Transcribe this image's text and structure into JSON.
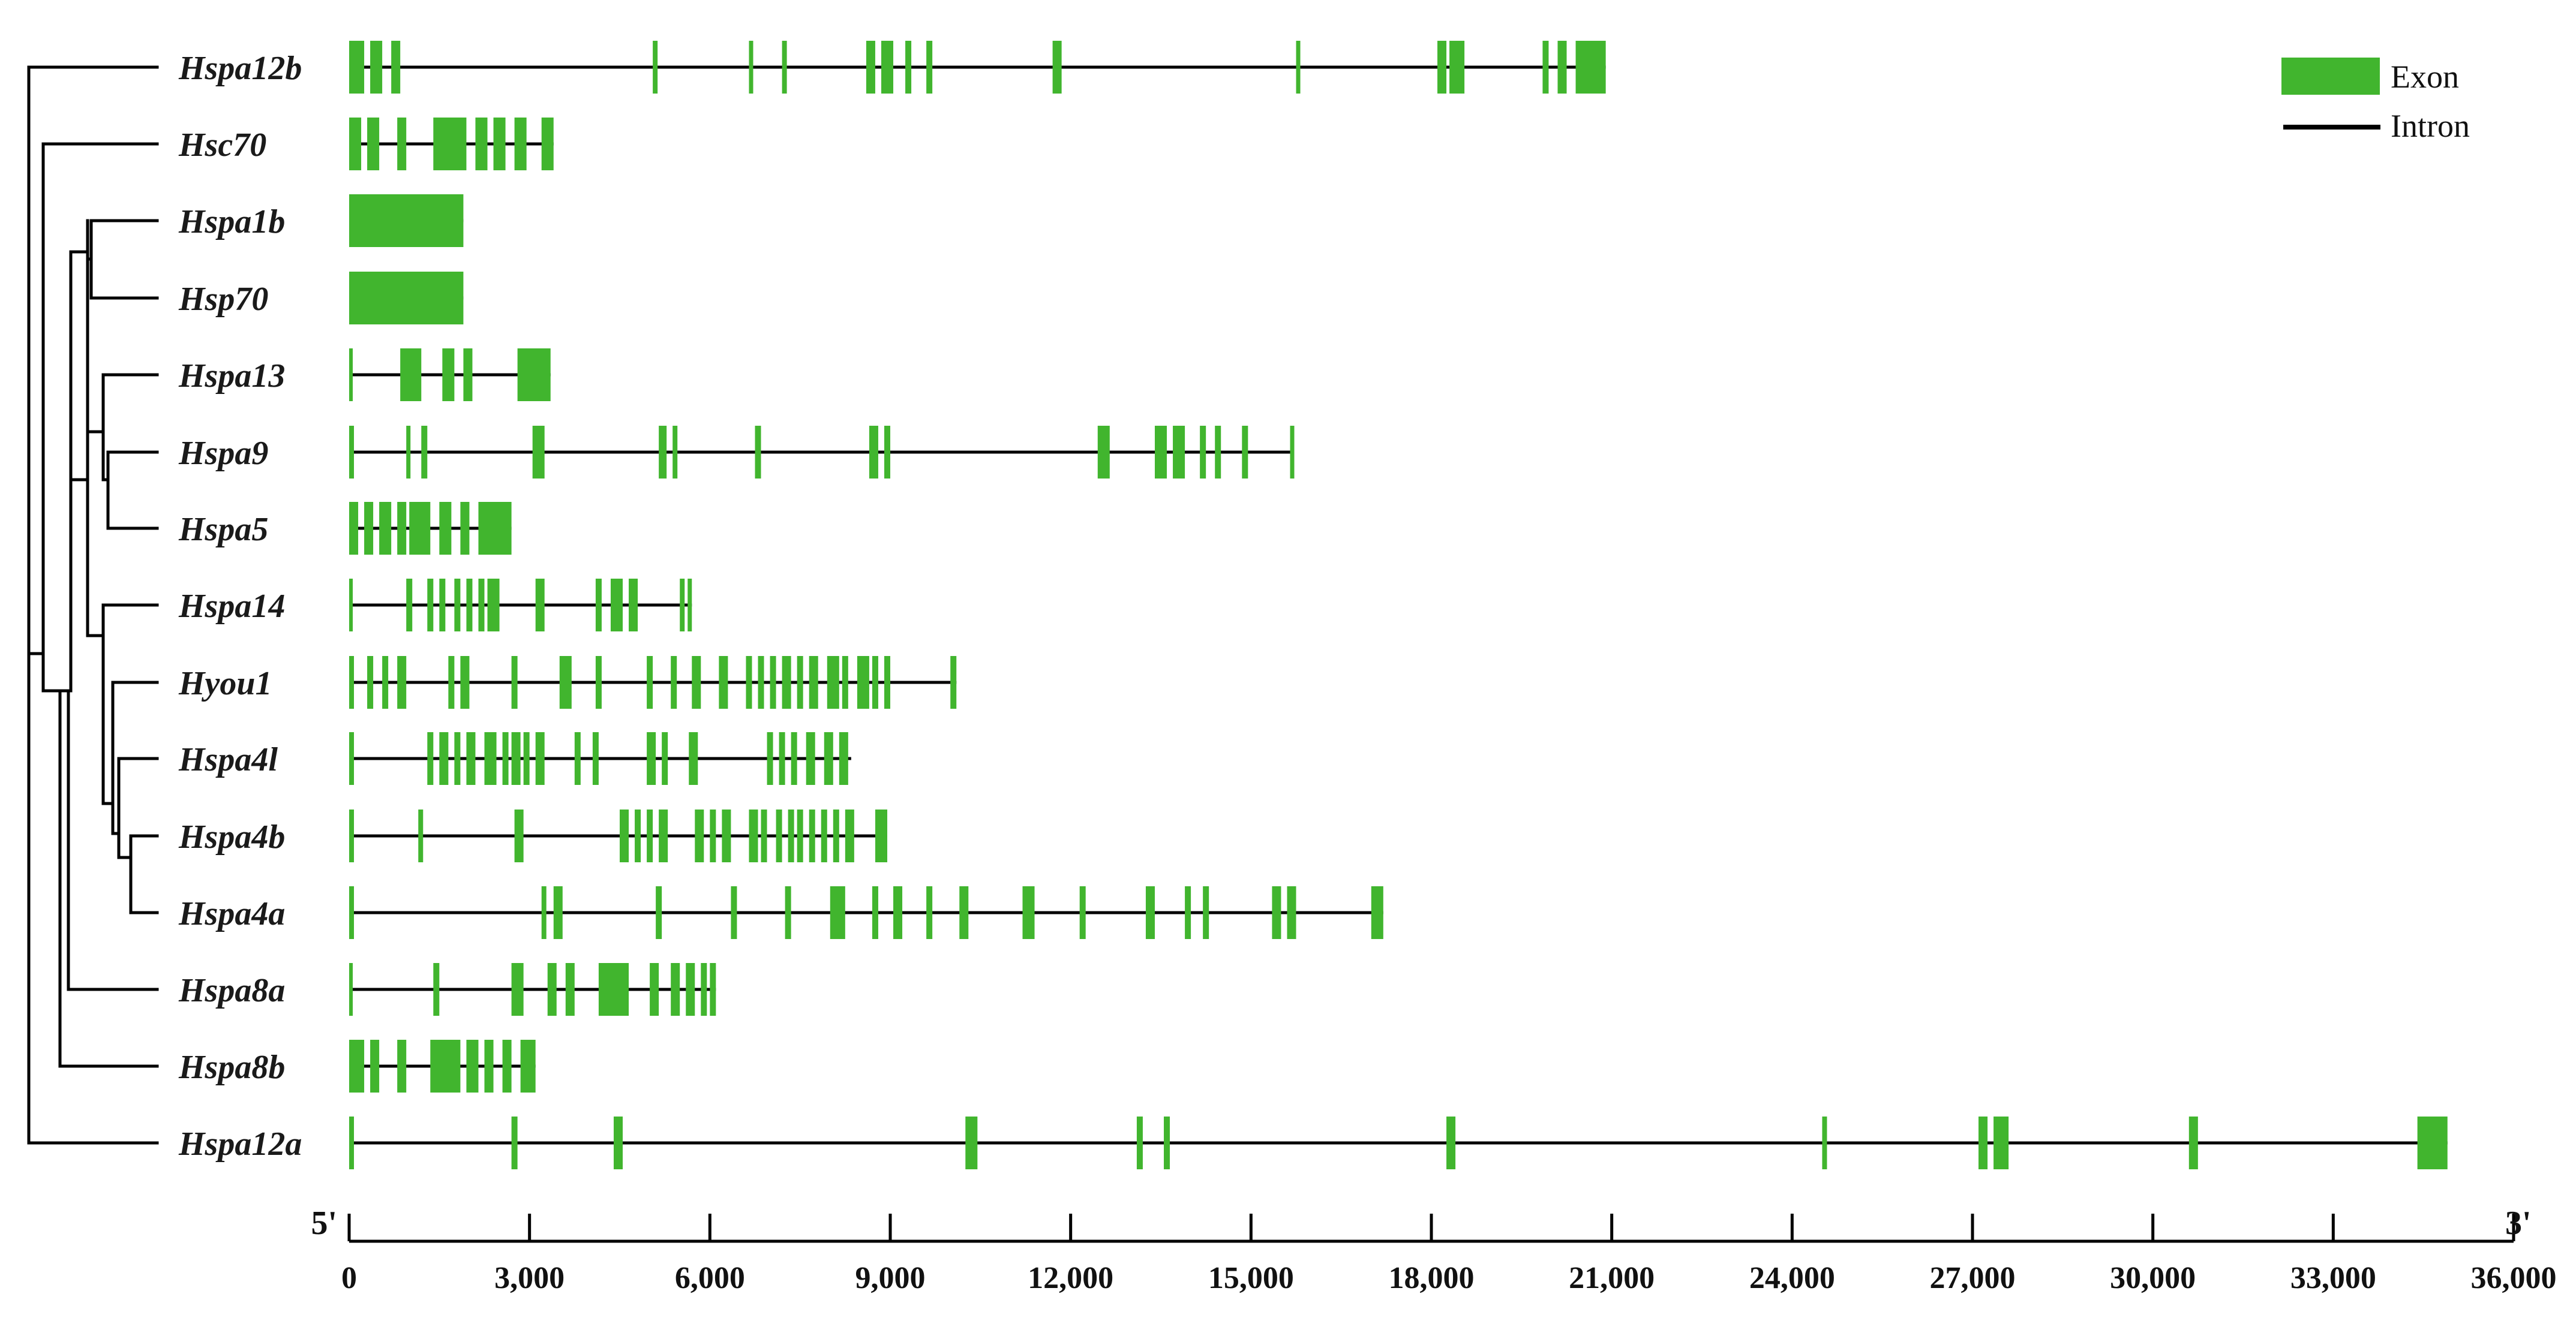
{
  "colors": {
    "exon": "#41b52e",
    "intron": "#000000",
    "tree": "#000000"
  },
  "legend": {
    "exon_label": "Exon",
    "intron_label": "Intron"
  },
  "axis": {
    "five_prime": "5'",
    "three_prime": "3'",
    "min": 0,
    "max": 36000,
    "ticks": [
      "0",
      "3,000",
      "6,000",
      "9,000",
      "12,000",
      "15,000",
      "18,000",
      "21,000",
      "24,000",
      "27,000",
      "30,000",
      "33,000",
      "36,000"
    ]
  },
  "chart_data": {
    "type": "gene-structure",
    "x_range": [
      0,
      36000
    ],
    "genes": [
      {
        "name": "Hspa12b",
        "length": 20900,
        "exons": [
          [
            0,
            250
          ],
          [
            350,
            550
          ],
          [
            700,
            850
          ],
          [
            5050,
            5130
          ],
          [
            6650,
            6720
          ],
          [
            7200,
            7280
          ],
          [
            8600,
            8750
          ],
          [
            8850,
            9050
          ],
          [
            9250,
            9350
          ],
          [
            9600,
            9700
          ],
          [
            11700,
            11850
          ],
          [
            15750,
            15820
          ],
          [
            18100,
            18250
          ],
          [
            18300,
            18550
          ],
          [
            19850,
            19950
          ],
          [
            20100,
            20250
          ],
          [
            20400,
            20900
          ]
        ]
      },
      {
        "name": "Hsc70",
        "length": 3400,
        "exons": [
          [
            0,
            200
          ],
          [
            300,
            500
          ],
          [
            800,
            950
          ],
          [
            1400,
            1950
          ],
          [
            2100,
            2300
          ],
          [
            2400,
            2600
          ],
          [
            2750,
            2950
          ],
          [
            3200,
            3400
          ]
        ]
      },
      {
        "name": "Hspa1b",
        "length": 1900,
        "exons": [
          [
            0,
            1900
          ]
        ]
      },
      {
        "name": "Hsp70",
        "length": 1900,
        "exons": [
          [
            0,
            1900
          ]
        ]
      },
      {
        "name": "Hspa13",
        "length": 3350,
        "exons": [
          [
            0,
            50
          ],
          [
            850,
            1200
          ],
          [
            1550,
            1750
          ],
          [
            1900,
            2050
          ],
          [
            2800,
            3350
          ]
        ]
      },
      {
        "name": "Hspa9",
        "length": 15700,
        "exons": [
          [
            0,
            80
          ],
          [
            950,
            1020
          ],
          [
            1200,
            1300
          ],
          [
            3050,
            3250
          ],
          [
            5150,
            5280
          ],
          [
            5380,
            5460
          ],
          [
            6750,
            6850
          ],
          [
            8650,
            8800
          ],
          [
            8900,
            9000
          ],
          [
            12450,
            12650
          ],
          [
            13400,
            13600
          ],
          [
            13700,
            13900
          ],
          [
            14150,
            14250
          ],
          [
            14400,
            14500
          ],
          [
            14850,
            14950
          ],
          [
            15650,
            15720
          ]
        ]
      },
      {
        "name": "Hspa5",
        "length": 2700,
        "exons": [
          [
            0,
            150
          ],
          [
            250,
            400
          ],
          [
            500,
            700
          ],
          [
            800,
            950
          ],
          [
            1000,
            1350
          ],
          [
            1500,
            1700
          ],
          [
            1850,
            2000
          ],
          [
            2150,
            2700
          ]
        ]
      },
      {
        "name": "Hspa14",
        "length": 5700,
        "exons": [
          [
            0,
            60
          ],
          [
            950,
            1050
          ],
          [
            1300,
            1400
          ],
          [
            1500,
            1600
          ],
          [
            1750,
            1850
          ],
          [
            1950,
            2050
          ],
          [
            2150,
            2250
          ],
          [
            2300,
            2500
          ],
          [
            3100,
            3250
          ],
          [
            4100,
            4200
          ],
          [
            4350,
            4550
          ],
          [
            4650,
            4800
          ],
          [
            5500,
            5580
          ],
          [
            5630,
            5700
          ]
        ]
      },
      {
        "name": "Hyou1",
        "length": 10100,
        "exons": [
          [
            0,
            80
          ],
          [
            300,
            400
          ],
          [
            550,
            650
          ],
          [
            800,
            950
          ],
          [
            1650,
            1750
          ],
          [
            1850,
            2000
          ],
          [
            2700,
            2800
          ],
          [
            3500,
            3700
          ],
          [
            4100,
            4200
          ],
          [
            4950,
            5050
          ],
          [
            5350,
            5450
          ],
          [
            5700,
            5850
          ],
          [
            6150,
            6300
          ],
          [
            6600,
            6700
          ],
          [
            6800,
            6900
          ],
          [
            7000,
            7100
          ],
          [
            7200,
            7350
          ],
          [
            7450,
            7550
          ],
          [
            7650,
            7800
          ],
          [
            7950,
            8150
          ],
          [
            8200,
            8300
          ],
          [
            8450,
            8650
          ],
          [
            8700,
            8800
          ],
          [
            8900,
            9000
          ],
          [
            10000,
            10100
          ]
        ]
      },
      {
        "name": "Hspa4l",
        "length": 8350,
        "exons": [
          [
            0,
            80
          ],
          [
            1300,
            1400
          ],
          [
            1500,
            1650
          ],
          [
            1750,
            1850
          ],
          [
            1950,
            2100
          ],
          [
            2250,
            2450
          ],
          [
            2550,
            2650
          ],
          [
            2700,
            2850
          ],
          [
            2900,
            3000
          ],
          [
            3100,
            3250
          ],
          [
            3750,
            3850
          ],
          [
            4050,
            4150
          ],
          [
            4950,
            5100
          ],
          [
            5200,
            5300
          ],
          [
            5650,
            5800
          ],
          [
            6950,
            7050
          ],
          [
            7150,
            7250
          ],
          [
            7350,
            7450
          ],
          [
            7600,
            7750
          ],
          [
            7900,
            8050
          ],
          [
            8150,
            8300
          ]
        ]
      },
      {
        "name": "Hspa4b",
        "length": 8950,
        "exons": [
          [
            0,
            80
          ],
          [
            1150,
            1230
          ],
          [
            2750,
            2900
          ],
          [
            4500,
            4650
          ],
          [
            4750,
            4850
          ],
          [
            4950,
            5050
          ],
          [
            5150,
            5300
          ],
          [
            5750,
            5900
          ],
          [
            6000,
            6100
          ],
          [
            6200,
            6350
          ],
          [
            6650,
            6800
          ],
          [
            6850,
            6950
          ],
          [
            7100,
            7200
          ],
          [
            7300,
            7400
          ],
          [
            7450,
            7550
          ],
          [
            7650,
            7750
          ],
          [
            7850,
            7950
          ],
          [
            8050,
            8150
          ],
          [
            8250,
            8400
          ],
          [
            8750,
            8950
          ]
        ]
      },
      {
        "name": "Hspa4a",
        "length": 17200,
        "exons": [
          [
            0,
            80
          ],
          [
            3200,
            3280
          ],
          [
            3400,
            3550
          ],
          [
            5100,
            5200
          ],
          [
            6350,
            6450
          ],
          [
            7250,
            7350
          ],
          [
            8000,
            8250
          ],
          [
            8700,
            8800
          ],
          [
            9050,
            9200
          ],
          [
            9600,
            9700
          ],
          [
            10150,
            10300
          ],
          [
            11200,
            11400
          ],
          [
            12150,
            12250
          ],
          [
            13250,
            13400
          ],
          [
            13900,
            14000
          ],
          [
            14200,
            14300
          ],
          [
            15350,
            15500
          ],
          [
            15600,
            15750
          ],
          [
            17000,
            17200
          ]
        ]
      },
      {
        "name": "Hspa8a",
        "length": 6100,
        "exons": [
          [
            0,
            60
          ],
          [
            1400,
            1500
          ],
          [
            2700,
            2900
          ],
          [
            3300,
            3450
          ],
          [
            3600,
            3750
          ],
          [
            4150,
            4650
          ],
          [
            5000,
            5150
          ],
          [
            5350,
            5500
          ],
          [
            5600,
            5750
          ],
          [
            5850,
            5950
          ],
          [
            6000,
            6100
          ]
        ]
      },
      {
        "name": "Hspa8b",
        "length": 3100,
        "exons": [
          [
            0,
            250
          ],
          [
            350,
            500
          ],
          [
            800,
            950
          ],
          [
            1350,
            1850
          ],
          [
            1950,
            2150
          ],
          [
            2250,
            2400
          ],
          [
            2550,
            2700
          ],
          [
            2850,
            3100
          ]
        ]
      },
      {
        "name": "Hspa12a",
        "length": 34900,
        "exons": [
          [
            0,
            80
          ],
          [
            2700,
            2800
          ],
          [
            4400,
            4550
          ],
          [
            10250,
            10450
          ],
          [
            13100,
            13200
          ],
          [
            13550,
            13650
          ],
          [
            18250,
            18400
          ],
          [
            24500,
            24580
          ],
          [
            27100,
            27250
          ],
          [
            27350,
            27600
          ],
          [
            30600,
            30750
          ],
          [
            34400,
            34900
          ]
        ]
      }
    ]
  }
}
